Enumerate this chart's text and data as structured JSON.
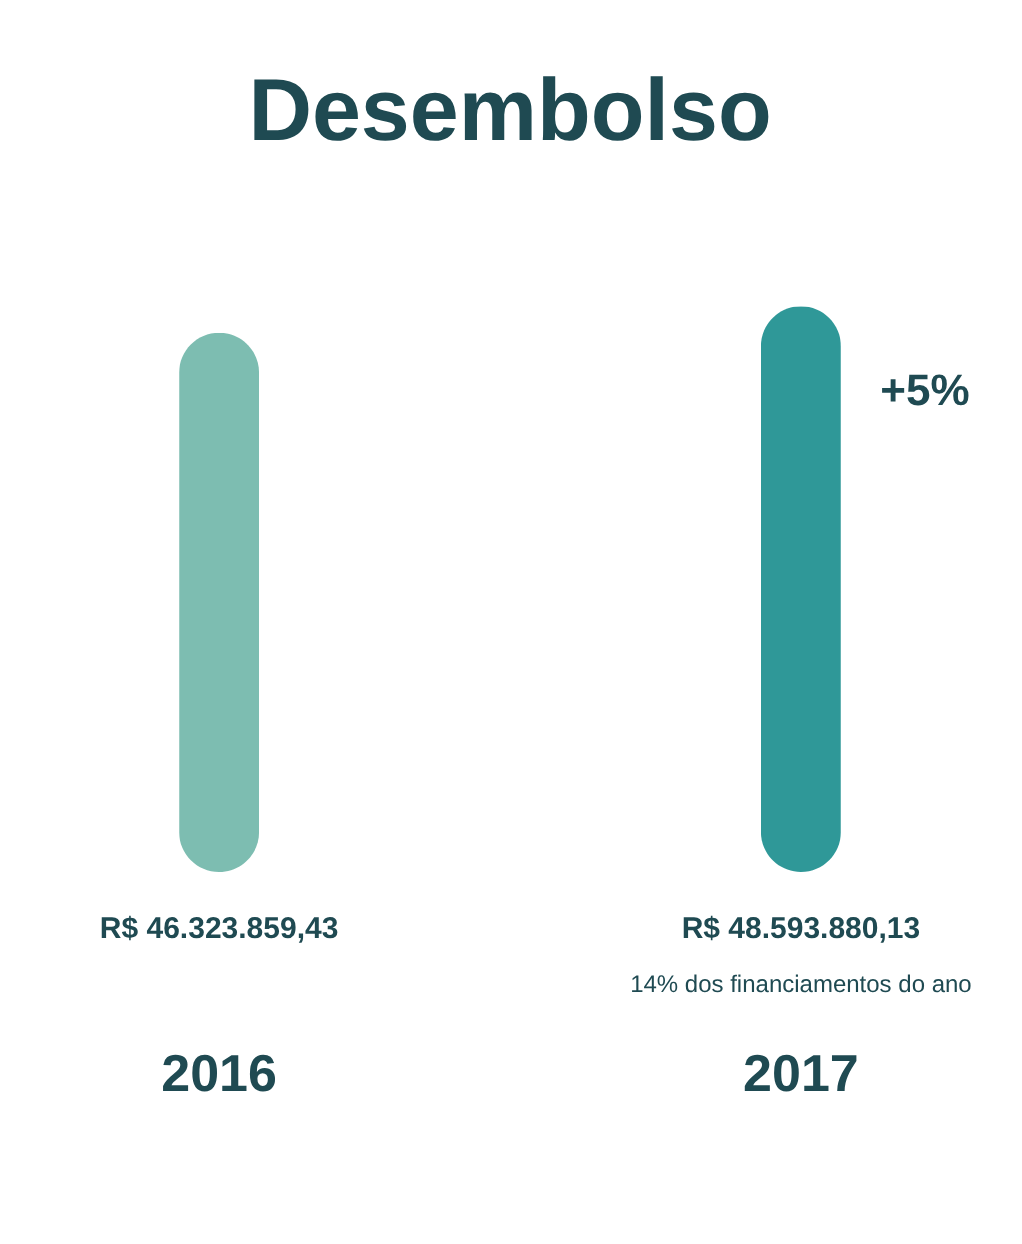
{
  "chart_data": {
    "type": "bar",
    "title": "Desembolso",
    "categories": [
      "2016",
      "2017"
    ],
    "values": [
      46323859.43,
      48593880.13
    ],
    "colors": [
      "#7dbdb1",
      "#2f9898"
    ],
    "value_labels": [
      "R$ 46.323.859,43",
      "R$ 48.593.880,13"
    ],
    "annotations": [
      "+5%",
      "14% dos financiamentos do ano"
    ]
  }
}
